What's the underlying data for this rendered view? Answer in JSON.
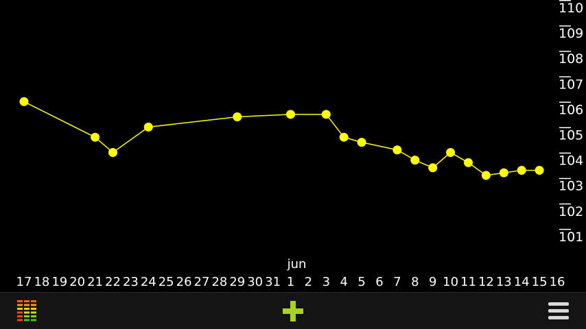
{
  "chart_data": {
    "type": "line",
    "title": "",
    "xlabel": "",
    "ylabel": "",
    "month_label": "jun",
    "x_tick_labels": [
      "17",
      "18",
      "19",
      "20",
      "21",
      "22",
      "23",
      "24",
      "25",
      "26",
      "27",
      "28",
      "29",
      "30",
      "31",
      "1",
      "2",
      "3",
      "4",
      "5",
      "6",
      "7",
      "8",
      "9",
      "10",
      "11",
      "12",
      "13",
      "14",
      "15",
      "16"
    ],
    "y_tick_labels": [
      "110",
      "109",
      "108",
      "107",
      "106",
      "105",
      "104",
      "103",
      "102",
      "101"
    ],
    "ylim": [
      100.5,
      110.2
    ],
    "series": [
      {
        "color": "#ffff00",
        "points": [
          {
            "x": "May 17",
            "y": 106.3
          },
          {
            "x": "May 21",
            "y": 104.9
          },
          {
            "x": "May 22",
            "y": 104.3
          },
          {
            "x": "May 24",
            "y": 105.3
          },
          {
            "x": "May 29",
            "y": 105.7
          },
          {
            "x": "Jun 1",
            "y": 105.8
          },
          {
            "x": "Jun 3",
            "y": 105.8
          },
          {
            "x": "Jun 4",
            "y": 104.9
          },
          {
            "x": "Jun 5",
            "y": 104.7
          },
          {
            "x": "Jun 7",
            "y": 104.4
          },
          {
            "x": "Jun 8",
            "y": 104.0
          },
          {
            "x": "Jun 9",
            "y": 103.7
          },
          {
            "x": "Jun 10",
            "y": 104.3
          },
          {
            "x": "Jun 11",
            "y": 103.9
          },
          {
            "x": "Jun 12",
            "y": 103.4
          },
          {
            "x": "Jun 13",
            "y": 103.5
          },
          {
            "x": "Jun 14",
            "y": 103.6
          },
          {
            "x": "Jun 15",
            "y": 103.6
          }
        ]
      }
    ],
    "grid": false,
    "y_axis_position": "right"
  },
  "toolbar": {
    "left_icon": "stats-bars-icon",
    "center_icon": "plus-icon",
    "right_icon": "menu-icon"
  },
  "colors": {
    "background": "#000000",
    "line": "#ffff00",
    "text": "#ffffff",
    "bar": "#141414",
    "plus": "#a8d41e"
  }
}
